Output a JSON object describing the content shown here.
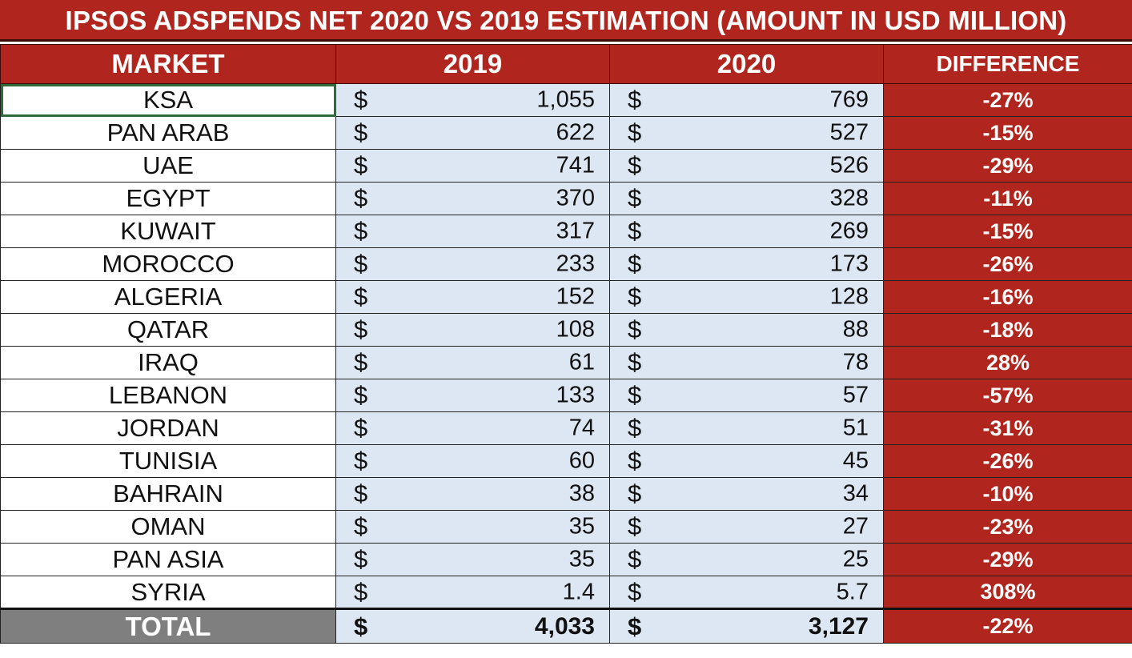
{
  "title": "IPSOS ADSPENDS NET 2020 VS 2019 ESTIMATION (AMOUNT IN USD MILLION)",
  "headers": {
    "market": "MARKET",
    "y2019": "2019",
    "y2020": "2020",
    "difference": "DIFFERENCE"
  },
  "currency_symbol": "$",
  "rows": [
    {
      "market": "KSA",
      "y2019": "1,055",
      "y2020": "769",
      "diff": "-27%"
    },
    {
      "market": "PAN ARAB",
      "y2019": "622",
      "y2020": "527",
      "diff": "-15%"
    },
    {
      "market": "UAE",
      "y2019": "741",
      "y2020": "526",
      "diff": "-29%"
    },
    {
      "market": "EGYPT",
      "y2019": "370",
      "y2020": "328",
      "diff": "-11%"
    },
    {
      "market": "KUWAIT",
      "y2019": "317",
      "y2020": "269",
      "diff": "-15%"
    },
    {
      "market": "MOROCCO",
      "y2019": "233",
      "y2020": "173",
      "diff": "-26%"
    },
    {
      "market": "ALGERIA",
      "y2019": "152",
      "y2020": "128",
      "diff": "-16%"
    },
    {
      "market": "QATAR",
      "y2019": "108",
      "y2020": "88",
      "diff": "-18%"
    },
    {
      "market": "IRAQ",
      "y2019": "61",
      "y2020": "78",
      "diff": "28%"
    },
    {
      "market": "LEBANON",
      "y2019": "133",
      "y2020": "57",
      "diff": "-57%"
    },
    {
      "market": "JORDAN",
      "y2019": "74",
      "y2020": "51",
      "diff": "-31%"
    },
    {
      "market": "TUNISIA",
      "y2019": "60",
      "y2020": "45",
      "diff": "-26%"
    },
    {
      "market": "BAHRAIN",
      "y2019": "38",
      "y2020": "34",
      "diff": "-10%"
    },
    {
      "market": "OMAN",
      "y2019": "35",
      "y2020": "27",
      "diff": "-23%"
    },
    {
      "market": "PAN ASIA",
      "y2019": "35",
      "y2020": "25",
      "diff": "-29%"
    },
    {
      "market": "SYRIA",
      "y2019": "1.4",
      "y2020": "5.7",
      "diff": "308%"
    }
  ],
  "total": {
    "market": "TOTAL",
    "y2019": "4,033",
    "y2020": "3,127",
    "diff": "-22%"
  },
  "colors": {
    "header_red": "#b0251d",
    "value_cell_blue": "#dde7f4",
    "total_gray": "#7f7f7f",
    "selection_green": "#2f6b3a"
  }
}
